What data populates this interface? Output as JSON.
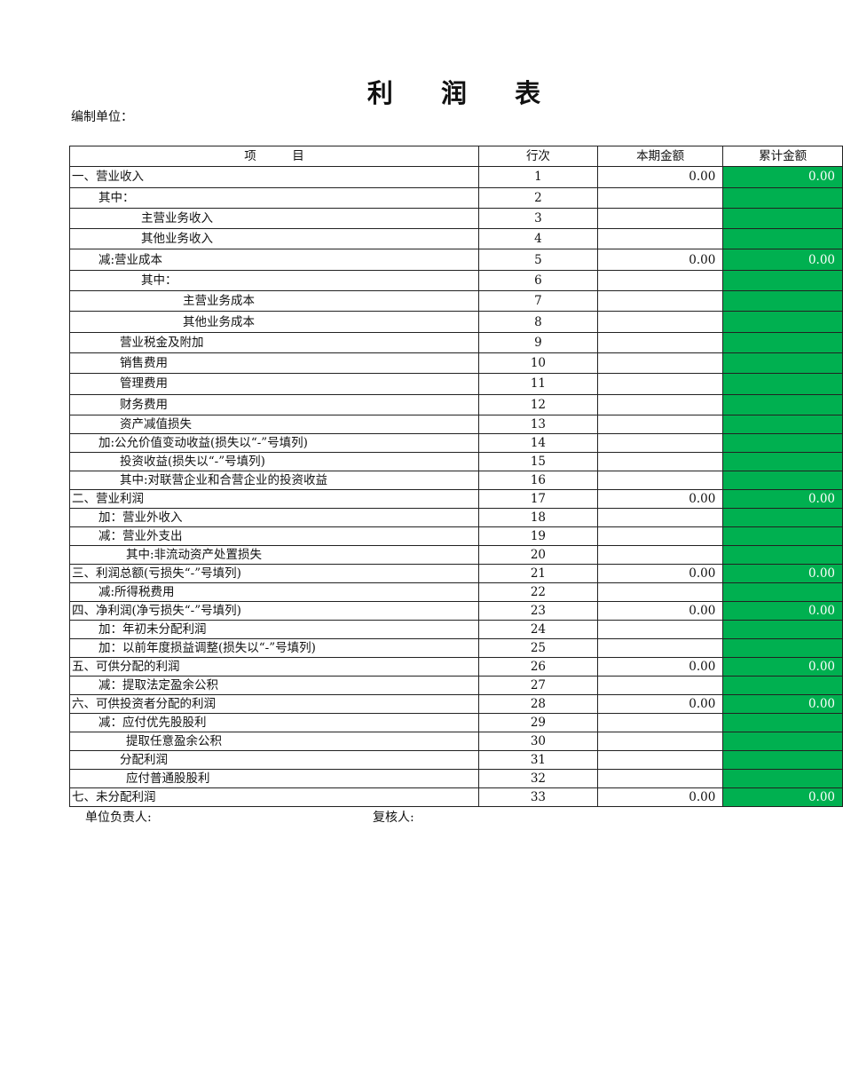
{
  "title": "利 润 表",
  "unit_label": "编制单位：",
  "headers": [
    "项　　　目",
    "行次",
    "本期金额",
    "累计金额"
  ],
  "accent_color": "#00b050",
  "rows": [
    {
      "item": "一、营业收入",
      "line": "1",
      "current": "0.00",
      "cumulative": "0.00"
    },
    {
      "item": "其中：",
      "line": "2",
      "current": "",
      "cumulative": ""
    },
    {
      "item": "主营业务收入",
      "line": "3",
      "current": "",
      "cumulative": ""
    },
    {
      "item": "其他业务收入",
      "line": "4",
      "current": "",
      "cumulative": ""
    },
    {
      "item": "减:营业成本",
      "line": "5",
      "current": "0.00",
      "cumulative": "0.00"
    },
    {
      "item": "其中：",
      "line": "6",
      "current": "",
      "cumulative": ""
    },
    {
      "item": "主营业务成本",
      "line": "7",
      "current": "",
      "cumulative": ""
    },
    {
      "item": "其他业务成本",
      "line": "8",
      "current": "",
      "cumulative": ""
    },
    {
      "item": "营业税金及附加",
      "line": "9",
      "current": "",
      "cumulative": ""
    },
    {
      "item": "销售费用",
      "line": "10",
      "current": "",
      "cumulative": ""
    },
    {
      "item": "管理费用",
      "line": "11",
      "current": "",
      "cumulative": ""
    },
    {
      "item": "财务费用",
      "line": "12",
      "current": "",
      "cumulative": ""
    },
    {
      "item": "资产减值损失",
      "line": "13",
      "current": "",
      "cumulative": ""
    },
    {
      "item": "加:公允价值变动收益(损失以“-”号填列)",
      "line": "14",
      "current": "",
      "cumulative": ""
    },
    {
      "item": "投资收益(损失以“-”号填列)",
      "line": "15",
      "current": "",
      "cumulative": ""
    },
    {
      "item": "其中:对联营企业和合营企业的投资收益",
      "line": "16",
      "current": "",
      "cumulative": ""
    },
    {
      "item": "二、营业利润",
      "line": "17",
      "current": "0.00",
      "cumulative": "0.00"
    },
    {
      "item": "加：营业外收入",
      "line": "18",
      "current": "",
      "cumulative": ""
    },
    {
      "item": "减：营业外支出",
      "line": "19",
      "current": "",
      "cumulative": ""
    },
    {
      "item": "其中:非流动资产处置损失",
      "line": "20",
      "current": "",
      "cumulative": ""
    },
    {
      "item": "三、利润总额(亏损失“-”号填列)",
      "line": "21",
      "current": "0.00",
      "cumulative": "0.00"
    },
    {
      "item": "减:所得税费用",
      "line": "22",
      "current": "",
      "cumulative": ""
    },
    {
      "item": "四、净利润(净亏损失“-”号填列)",
      "line": "23",
      "current": "0.00",
      "cumulative": "0.00"
    },
    {
      "item": "加：年初未分配利润",
      "line": "24",
      "current": "",
      "cumulative": ""
    },
    {
      "item": "加：以前年度损益调整(损失以“-”号填列)",
      "line": "25",
      "current": "",
      "cumulative": ""
    },
    {
      "item": "五、可供分配的利润",
      "line": "26",
      "current": "0.00",
      "cumulative": "0.00"
    },
    {
      "item": "减：提取法定盈余公积",
      "line": "27",
      "current": "",
      "cumulative": ""
    },
    {
      "item": "六、可供投资者分配的利润",
      "line": "28",
      "current": "0.00",
      "cumulative": "0.00"
    },
    {
      "item": "减：应付优先股股利",
      "line": "29",
      "current": "",
      "cumulative": ""
    },
    {
      "item": "提取任意盈余公积",
      "line": "30",
      "current": "",
      "cumulative": ""
    },
    {
      "item": "分配利润",
      "line": "31",
      "current": "",
      "cumulative": ""
    },
    {
      "item": "应付普通股股利",
      "line": "32",
      "current": "",
      "cumulative": ""
    },
    {
      "item": "七、未分配利润",
      "line": "33",
      "current": "0.00",
      "cumulative": "0.00"
    }
  ],
  "footer": {
    "responsible": "单位负责人:",
    "reviewer": "复核人:"
  }
}
